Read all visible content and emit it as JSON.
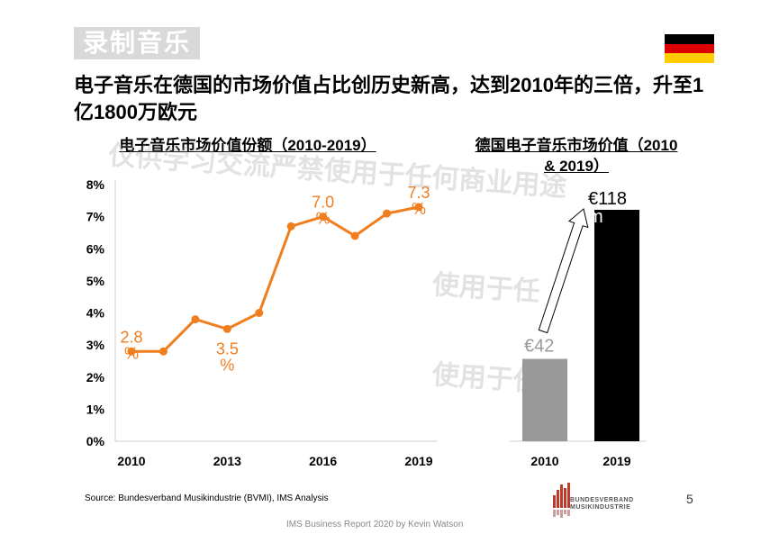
{
  "section_tag": "录制音乐",
  "headline": "电子音乐在德国的市场价值占比创历史新高，达到2010年的三倍，升至1亿1800万欧元",
  "source": "Source: Bundesverband Musikindustrie (BVMI), IMS Analysis",
  "footer": "IMS Business Report 2020 by Kevin Watson",
  "page_number": "5",
  "logo_text_1": "BUNDESVERBAND",
  "logo_text_2": "MUSIKINDUSTRIE",
  "watermarks": [
    "仅供学习交流严禁使用于任何商业用途",
    "使用于任",
    "使用于任"
  ],
  "colors": {
    "orange": "#f07d1e",
    "gray_bar": "#999999",
    "black_bar": "#000000",
    "flag": [
      "#000000",
      "#dd0000",
      "#ffcc00"
    ]
  },
  "chart_data": [
    {
      "type": "line",
      "title": "电子音乐市场价值份额（2010-2019）",
      "x": [
        2010,
        2011,
        2012,
        2013,
        2014,
        2015,
        2016,
        2017,
        2018,
        2019
      ],
      "values": [
        2.8,
        2.8,
        3.8,
        3.5,
        4.0,
        6.7,
        7.0,
        6.4,
        7.1,
        7.3
      ],
      "ylim": [
        0,
        8
      ],
      "yticks": [
        "0%",
        "1%",
        "2%",
        "3%",
        "4%",
        "5%",
        "6%",
        "7%",
        "8%"
      ],
      "xticks": [
        "2010",
        "2013",
        "2016",
        "2019"
      ],
      "data_labels": [
        {
          "x": 2010,
          "text": "2.8%"
        },
        {
          "x": 2013,
          "text": "3.5%"
        },
        {
          "x": 2016,
          "text": "7.0%"
        },
        {
          "x": 2019,
          "text": "7.3%"
        }
      ]
    },
    {
      "type": "bar",
      "title": "德国电子音乐市场价值（2010 & 2019）",
      "categories": [
        "2010",
        "2019"
      ],
      "values": [
        42,
        118
      ],
      "data_labels": [
        "€42m",
        "€118m"
      ],
      "unit": "€m"
    }
  ]
}
